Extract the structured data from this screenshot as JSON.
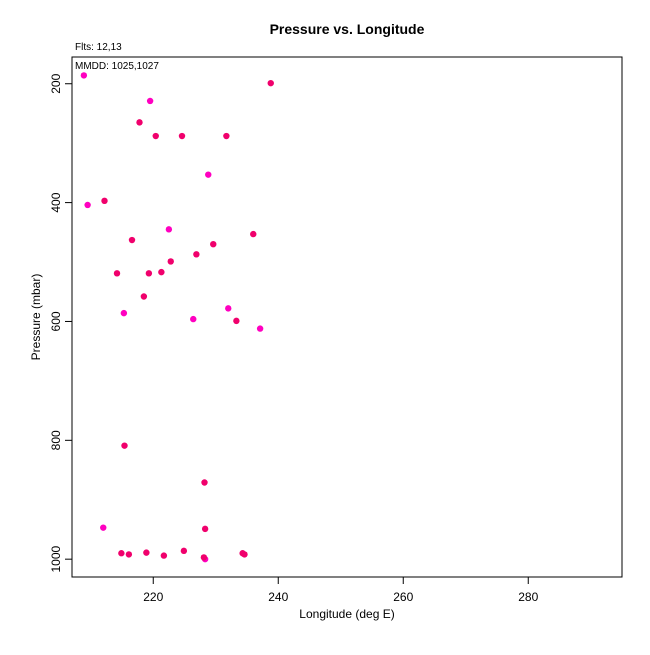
{
  "chart_data": {
    "type": "scatter",
    "title": "Pressure vs. Longitude",
    "xlabel": "Longitude (deg E)",
    "ylabel": "Pressure (mbar)",
    "xlim": [
      207,
      295
    ],
    "ylim": [
      1030,
      155
    ],
    "y_reversed": true,
    "x_ticks": [
      220,
      240,
      260,
      280
    ],
    "y_ticks": [
      200,
      400,
      600,
      800,
      1000
    ],
    "grid": false,
    "annotations": {
      "flts": "Flts: 12,13",
      "mmdd": "MMDD: 1025,1027"
    },
    "series": [
      {
        "color": "#ff00c0",
        "points": [
          [
            208.9,
            186
          ],
          [
            219.5,
            229
          ],
          [
            209.5,
            404
          ],
          [
            222.5,
            445
          ],
          [
            215.3,
            586
          ],
          [
            226.4,
            596
          ],
          [
            228.8,
            353
          ],
          [
            232.0,
            578
          ],
          [
            237.1,
            612
          ],
          [
            212.0,
            947
          ],
          [
            228.3,
            1000
          ]
        ]
      },
      {
        "color": "#f0006c",
        "points": [
          [
            238.8,
            199
          ],
          [
            217.8,
            265
          ],
          [
            220.4,
            288
          ],
          [
            224.6,
            288
          ],
          [
            231.7,
            288
          ],
          [
            212.2,
            397
          ],
          [
            216.6,
            463
          ],
          [
            229.6,
            470
          ],
          [
            236.0,
            453
          ],
          [
            226.9,
            487
          ],
          [
            222.8,
            499
          ],
          [
            214.2,
            519
          ],
          [
            219.3,
            519
          ],
          [
            221.3,
            517
          ],
          [
            218.5,
            558
          ],
          [
            233.3,
            599
          ],
          [
            215.4,
            809
          ],
          [
            228.2,
            871
          ],
          [
            228.3,
            949
          ],
          [
            214.9,
            990
          ],
          [
            216.1,
            992
          ],
          [
            218.9,
            989
          ],
          [
            221.7,
            994
          ],
          [
            224.9,
            986
          ],
          [
            228.1,
            997
          ],
          [
            234.3,
            990
          ],
          [
            234.6,
            992
          ]
        ]
      }
    ]
  }
}
